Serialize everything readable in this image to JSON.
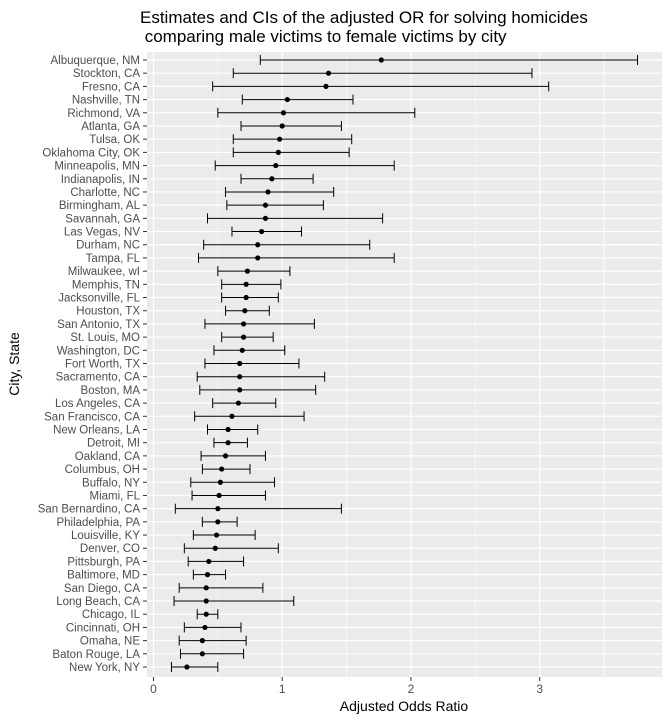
{
  "chart_data": {
    "type": "scatter",
    "subtype": "forest-plot-with-error-bars",
    "title_line1": "Estimates and CIs of the adjusted OR for solving homicides",
    "title_line2": " comparing male victims to female victims by city",
    "xlabel": "Adjusted Odds Ratio",
    "ylabel": "City, State",
    "xlim": [
      -0.05,
      3.95
    ],
    "xticks": [
      0,
      1,
      2,
      3
    ],
    "grid": true,
    "legend": "none",
    "colors": {
      "panel_background": "#ebebeb",
      "grid_major": "#ffffff",
      "point": "#000000",
      "errorbar": "#000000",
      "axis_text": "#4d4d4d",
      "title_text": "#000000"
    },
    "categories": [
      "Albuquerque, NM",
      "Stockton, CA",
      "Fresno, CA",
      "Nashville, TN",
      "Richmond, VA",
      "Atlanta, GA",
      "Tulsa, OK",
      "Oklahoma City, OK",
      "Minneapolis, MN",
      "Indianapolis, IN",
      "Charlotte, NC",
      "Birmingham, AL",
      "Savannah, GA",
      "Las Vegas, NV",
      "Durham, NC",
      "Tampa, FL",
      "Milwaukee, wI",
      "Memphis, TN",
      "Jacksonville, FL",
      "Houston, TX",
      "San Antonio, TX",
      "St. Louis, MO",
      "Washington, DC",
      "Fort Worth, TX",
      "Sacramento, CA",
      "Boston, MA",
      "Los Angeles, CA",
      "San Francisco, CA",
      "New Orleans, LA",
      "Detroit, MI",
      "Oakland, CA",
      "Columbus, OH",
      "Buffalo, NY",
      "Miami, FL",
      "San Bernardino, CA",
      "Philadelphia, PA",
      "Louisville, KY",
      "Denver, CO",
      "Pittsburgh, PA",
      "Baltimore, MD",
      "San Diego, CA",
      "Long Beach, CA",
      "Chicago, IL",
      "Cincinnati, OH",
      "Omaha, NE",
      "Baton Rouge, LA",
      "New York, NY"
    ],
    "estimates": [
      1.77,
      1.36,
      1.34,
      1.04,
      1.01,
      1.0,
      0.98,
      0.97,
      0.95,
      0.92,
      0.89,
      0.87,
      0.87,
      0.84,
      0.81,
      0.81,
      0.73,
      0.72,
      0.72,
      0.71,
      0.7,
      0.7,
      0.69,
      0.67,
      0.67,
      0.67,
      0.66,
      0.61,
      0.58,
      0.58,
      0.56,
      0.53,
      0.52,
      0.51,
      0.5,
      0.5,
      0.49,
      0.48,
      0.43,
      0.42,
      0.41,
      0.41,
      0.41,
      0.4,
      0.38,
      0.38,
      0.26
    ],
    "ci_low": [
      0.83,
      0.62,
      0.46,
      0.69,
      0.5,
      0.68,
      0.62,
      0.62,
      0.48,
      0.68,
      0.56,
      0.57,
      0.42,
      0.61,
      0.39,
      0.35,
      0.5,
      0.53,
      0.53,
      0.56,
      0.4,
      0.53,
      0.47,
      0.4,
      0.34,
      0.36,
      0.46,
      0.32,
      0.42,
      0.47,
      0.37,
      0.38,
      0.29,
      0.3,
      0.17,
      0.38,
      0.31,
      0.24,
      0.27,
      0.31,
      0.2,
      0.16,
      0.34,
      0.24,
      0.2,
      0.21,
      0.14
    ],
    "ci_high": [
      3.76,
      2.94,
      3.07,
      1.55,
      2.03,
      1.46,
      1.54,
      1.52,
      1.87,
      1.24,
      1.4,
      1.32,
      1.78,
      1.15,
      1.68,
      1.87,
      1.06,
      0.99,
      0.97,
      0.9,
      1.25,
      0.93,
      1.02,
      1.13,
      1.33,
      1.26,
      0.95,
      1.17,
      0.81,
      0.73,
      0.87,
      0.75,
      0.94,
      0.87,
      1.46,
      0.65,
      0.79,
      0.97,
      0.7,
      0.56,
      0.85,
      1.09,
      0.5,
      0.68,
      0.72,
      0.7,
      0.5
    ]
  }
}
